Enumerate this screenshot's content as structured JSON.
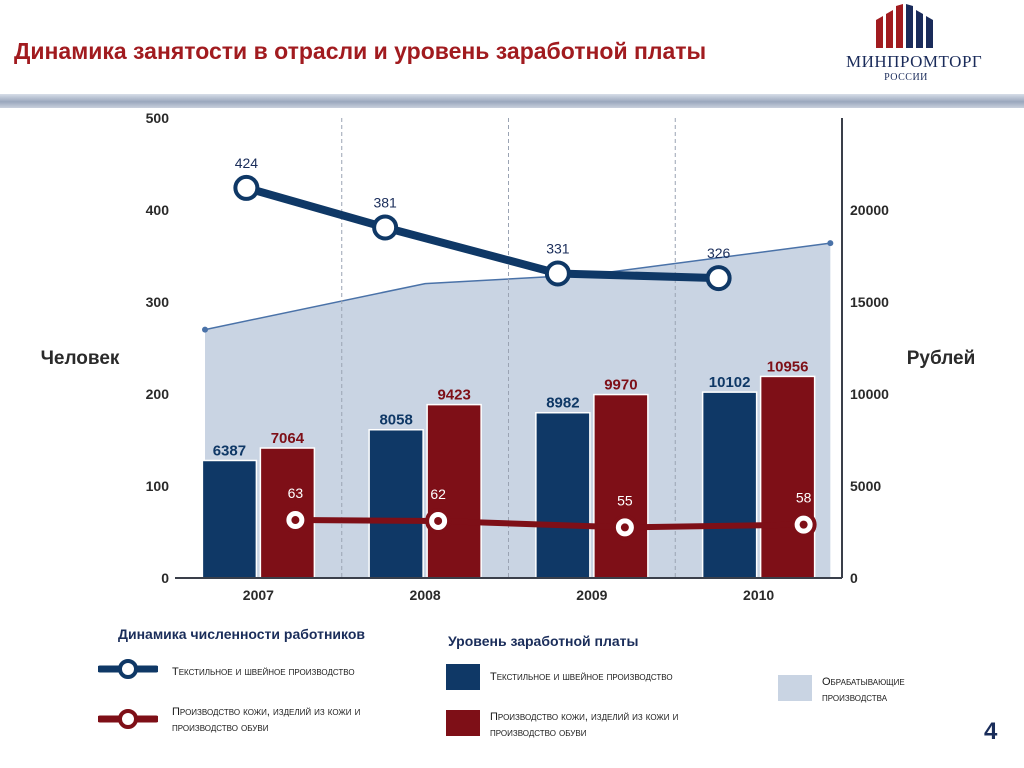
{
  "slide": {
    "title": "Динамика занятости в отрасли и уровень заработной платы",
    "page_number": "4"
  },
  "logo": {
    "name": "МИНПРОМТОРГ",
    "sub": "РОССИИ"
  },
  "colors": {
    "navy": "#0f3866",
    "maroon": "#7e0f17",
    "area_fill": "#c9d4e3",
    "area_line": "#4a72a8",
    "title_red": "#a11b1f"
  },
  "chart_data": {
    "type": "bar",
    "categories": [
      "2007",
      "2008",
      "2009",
      "2010"
    ],
    "y_left": {
      "label": "Человек",
      "ticks": [
        "0",
        "100",
        "200",
        "300",
        "400",
        "500"
      ],
      "range": [
        0,
        500
      ]
    },
    "y_right": {
      "label": "Рублей",
      "ticks": [
        "0",
        "5000",
        "10000",
        "15000",
        "20000"
      ],
      "range": [
        0,
        25000
      ]
    },
    "bar_series": [
      {
        "name": "Текстильное и швейное производство",
        "color": "#0f3866",
        "values": [
          6387,
          8058,
          8982,
          10102
        ]
      },
      {
        "name": "Производство кожи, изделий из кожи и производство обуви",
        "color": "#7e0f17",
        "values": [
          7064,
          9423,
          9970,
          10956
        ]
      }
    ],
    "area_series": {
      "name": "Обрабатывающие производства",
      "x": [
        2006.68,
        2008,
        2009,
        2010.43
      ],
      "values": [
        13500,
        16000,
        16500,
        18200
      ]
    },
    "line_series": [
      {
        "name": "Текстильное и швейное производство",
        "color": "#0f3866",
        "values": [
          424,
          381,
          331,
          326
        ]
      },
      {
        "name": "Производство кожи, изделий из кожи и производство обуви",
        "color": "#7e0f17",
        "values": [
          63,
          62,
          55,
          58
        ]
      }
    ]
  },
  "legend": {
    "headcount_title": "Динамика численности работников",
    "wage_title": "Уровень заработной платы",
    "items": {
      "line_textile": "Текстильное и швейное производство",
      "line_leather": "Производство кожи, изделий из кожи и производство обуви",
      "bar_textile": "Текстильное и швейное производство",
      "bar_leather": "Производство кожи, изделий из кожи и производство обуви",
      "area_manufacturing": "Обрабатывающие производства"
    }
  }
}
